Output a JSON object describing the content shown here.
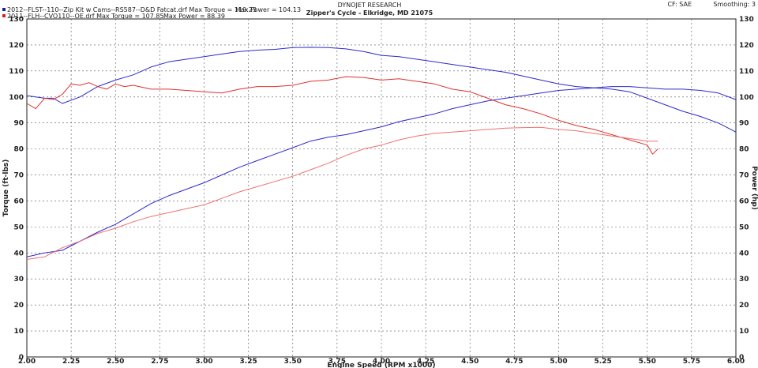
{
  "header": {
    "title": "DYNOJET RESEARCH",
    "subtitle": "Zipper's Cycle - Elkridge, MD 21075",
    "cf": "CF: SAE",
    "smoothing": "Smoothing: 3"
  },
  "legend": [
    {
      "color": "#1c1ca8",
      "text": "2012--FLST--110--Zip Kit w Cams--RS587--D&D Fatcat.drf Max Torque = 119.23",
      "power_text": "Max Power = 104.13"
    },
    {
      "color": "#d42020",
      "text": "2011--FLH--CVO110--OE.drf Max Torque = 107.85",
      "power_text": "Max Power = 88.39"
    }
  ],
  "chart_data": {
    "type": "line",
    "title": "DYNOJET RESEARCH",
    "subtitle": "Zipper's Cycle - Elkridge, MD 21075",
    "xlabel": "Engine Speed (RPM x1000)",
    "ylabel_left": "Torque (ft-lbs)",
    "ylabel_right": "Power (hp)",
    "xlim": [
      2.0,
      6.0
    ],
    "ylim": [
      0,
      130
    ],
    "grid": true,
    "xticks": [
      "2.00",
      "2.25",
      "2.50",
      "2.75",
      "3.00",
      "3.25",
      "3.50",
      "3.75",
      "4.00",
      "4.25",
      "4.50",
      "4.75",
      "5.00",
      "5.25",
      "5.50",
      "5.75",
      "6.00"
    ],
    "yticks": [
      "0",
      "10",
      "20",
      "30",
      "40",
      "50",
      "60",
      "70",
      "80",
      "90",
      "100",
      "110",
      "120",
      "130"
    ],
    "series": [
      {
        "name": "2012--FLST--110--Zip Kit w Cams--RS587--D&D Fatcat.drf",
        "measure": "Torque",
        "color": "#2a2acc",
        "x": [
          2.0,
          2.1,
          2.15,
          2.2,
          2.3,
          2.4,
          2.5,
          2.6,
          2.7,
          2.8,
          2.9,
          3.0,
          3.1,
          3.2,
          3.3,
          3.4,
          3.5,
          3.6,
          3.7,
          3.8,
          3.9,
          4.0,
          4.1,
          4.2,
          4.3,
          4.4,
          4.5,
          4.6,
          4.7,
          4.8,
          4.9,
          5.0,
          5.1,
          5.2,
          5.3,
          5.4,
          5.5,
          5.6,
          5.7,
          5.8,
          5.9,
          6.0
        ],
        "y": [
          100.5,
          99.5,
          99.5,
          97.5,
          100.0,
          104.0,
          106.5,
          108.5,
          111.5,
          113.5,
          114.5,
          115.5,
          116.5,
          117.5,
          118.0,
          118.3,
          119.0,
          119.1,
          119.0,
          118.5,
          117.5,
          116.0,
          115.5,
          114.5,
          113.5,
          112.5,
          111.5,
          110.5,
          109.5,
          108.0,
          106.5,
          105.0,
          104.0,
          103.5,
          103.0,
          102.0,
          99.5,
          97.0,
          94.5,
          92.5,
          90.0,
          86.5
        ]
      },
      {
        "name": "2012--FLST--110--Zip Kit w Cams--RS587--D&D Fatcat.drf",
        "measure": "Power",
        "color": "#2a2acc",
        "x": [
          2.0,
          2.1,
          2.2,
          2.3,
          2.4,
          2.5,
          2.6,
          2.7,
          2.8,
          2.9,
          3.0,
          3.1,
          3.2,
          3.3,
          3.4,
          3.5,
          3.6,
          3.7,
          3.8,
          3.9,
          4.0,
          4.1,
          4.2,
          4.3,
          4.4,
          4.5,
          4.6,
          4.7,
          4.8,
          4.9,
          5.0,
          5.1,
          5.2,
          5.3,
          5.4,
          5.5,
          5.6,
          5.7,
          5.8,
          5.9,
          6.0
        ],
        "y": [
          38.5,
          40.0,
          41.0,
          44.5,
          48.0,
          51.0,
          55.0,
          59.0,
          62.0,
          64.5,
          67.0,
          70.0,
          73.0,
          75.5,
          78.0,
          80.5,
          83.0,
          84.5,
          85.5,
          87.0,
          88.5,
          90.5,
          92.0,
          93.5,
          95.5,
          97.0,
          98.5,
          99.5,
          100.5,
          101.5,
          102.5,
          103.0,
          103.5,
          104.0,
          104.0,
          103.5,
          103.0,
          103.0,
          102.5,
          101.5,
          99.0
        ]
      },
      {
        "name": "2011--FLH--CVO110--OE.drf",
        "measure": "Torque",
        "color": "#e03030",
        "x": [
          2.0,
          2.05,
          2.1,
          2.15,
          2.2,
          2.25,
          2.3,
          2.35,
          2.4,
          2.45,
          2.5,
          2.55,
          2.6,
          2.7,
          2.8,
          2.9,
          3.0,
          3.1,
          3.2,
          3.3,
          3.4,
          3.5,
          3.6,
          3.7,
          3.8,
          3.9,
          4.0,
          4.1,
          4.2,
          4.3,
          4.4,
          4.5,
          4.6,
          4.7,
          4.8,
          4.9,
          5.0,
          5.1,
          5.2,
          5.3,
          5.4,
          5.5,
          5.53,
          5.56
        ],
        "y": [
          97.5,
          95.5,
          99.5,
          99.0,
          101.0,
          105.0,
          104.5,
          105.5,
          104.0,
          103.0,
          105.0,
          104.0,
          104.5,
          103.0,
          103.0,
          102.5,
          102.0,
          101.5,
          103.0,
          104.0,
          104.0,
          104.5,
          106.0,
          106.5,
          107.8,
          107.5,
          106.5,
          107.0,
          106.0,
          105.0,
          103.0,
          102.0,
          99.5,
          97.0,
          95.5,
          93.5,
          91.0,
          89.0,
          87.5,
          85.5,
          83.5,
          81.5,
          78.0,
          80.0
        ]
      },
      {
        "name": "2011--FLH--CVO110--OE.drf",
        "measure": "Power",
        "color": "#f07070",
        "x": [
          2.0,
          2.1,
          2.2,
          2.3,
          2.4,
          2.5,
          2.6,
          2.7,
          2.8,
          2.9,
          3.0,
          3.1,
          3.2,
          3.3,
          3.4,
          3.5,
          3.6,
          3.7,
          3.8,
          3.9,
          4.0,
          4.1,
          4.2,
          4.3,
          4.4,
          4.5,
          4.6,
          4.7,
          4.8,
          4.9,
          5.0,
          5.1,
          5.2,
          5.3,
          5.4,
          5.5,
          5.56
        ],
        "y": [
          37.5,
          38.5,
          42.0,
          44.5,
          47.5,
          49.5,
          52.0,
          54.0,
          55.5,
          57.0,
          58.5,
          61.0,
          63.5,
          65.5,
          67.5,
          69.5,
          72.0,
          74.5,
          77.5,
          80.0,
          81.5,
          83.5,
          85.0,
          86.0,
          86.5,
          87.0,
          87.5,
          88.0,
          88.2,
          88.3,
          87.5,
          87.0,
          86.0,
          85.0,
          84.0,
          83.0,
          83.0
        ]
      }
    ]
  }
}
